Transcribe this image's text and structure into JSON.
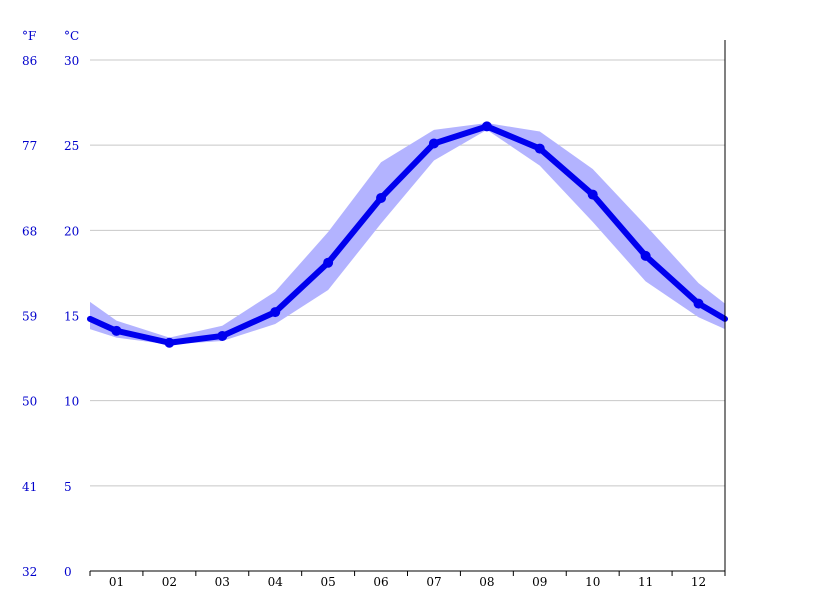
{
  "chart_data": {
    "type": "line",
    "categories": [
      "01",
      "02",
      "03",
      "04",
      "05",
      "06",
      "07",
      "08",
      "09",
      "10",
      "11",
      "12"
    ],
    "y_units": {
      "fahrenheit": "°F",
      "celsius": "°C"
    },
    "y_ticks_celsius": [
      "0",
      "5",
      "10",
      "15",
      "20",
      "25",
      "30"
    ],
    "y_ticks_fahrenheit": [
      "32",
      "41",
      "50",
      "59",
      "68",
      "77",
      "86"
    ],
    "ylim": [
      0,
      30
    ],
    "grid": true,
    "series": [
      {
        "values": [
          14.1,
          13.4,
          13.8,
          15.2,
          18.1,
          21.9,
          25.1,
          26.1,
          24.8,
          22.1,
          18.5,
          15.7
        ]
      }
    ],
    "range_band": {
      "upper": [
        14.7,
        13.7,
        14.4,
        16.4,
        19.9,
        24.0,
        25.9,
        26.3,
        25.8,
        23.6,
        20.3,
        16.9
      ],
      "lower": [
        13.7,
        13.3,
        13.5,
        14.5,
        16.5,
        20.4,
        24.1,
        25.9,
        23.8,
        20.5,
        17.0,
        14.9
      ]
    },
    "edge_values": {
      "december_left": 14.8,
      "january_right": 14.8
    },
    "edge_band": {
      "left_upper": 15.8,
      "left_lower": 14.2,
      "right_upper": 15.7,
      "right_lower": 14.2
    },
    "colors": {
      "line": "#0000ee",
      "band": "#b3b3ff",
      "grid": "#c8c8c8",
      "axis_labels": "#0000cc",
      "axis": "#000000"
    }
  }
}
